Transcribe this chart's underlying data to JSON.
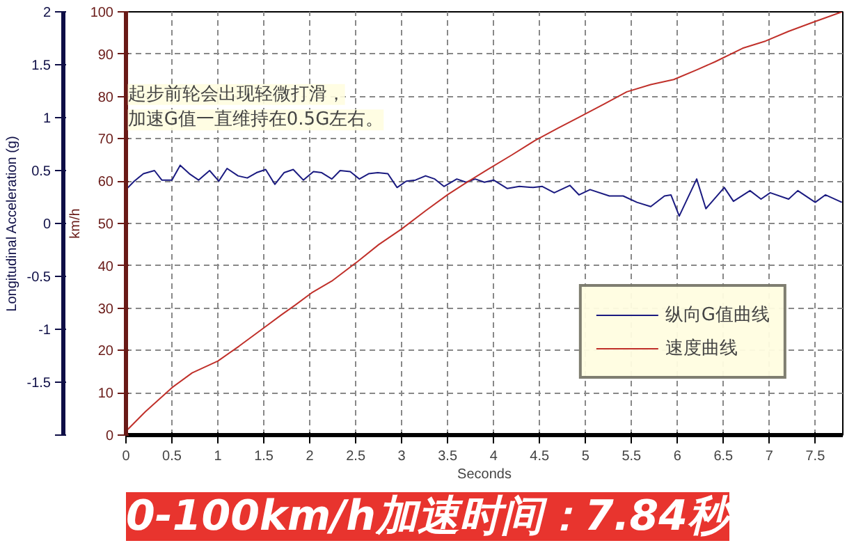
{
  "chart_data": {
    "type": "line",
    "title": "0-100km/h加速时间：7.84秒",
    "xlabel": "Seconds",
    "ylabel": "Longitudinal Acceleration (g)",
    "y2label": "km/h",
    "annotations": [
      "起步前轮会出现轻微打滑，",
      "加速G值一直维持在0.5G左右。"
    ],
    "xlim": [
      0,
      7.8
    ],
    "xticks": [
      0,
      0.5,
      1,
      1.5,
      2,
      2.5,
      3,
      3.5,
      4,
      4.5,
      5,
      5.5,
      6,
      6.5,
      7,
      7.5
    ],
    "ylim": [
      -2,
      2
    ],
    "yticks": [
      {
        "value": -2,
        "label": null
      },
      -1.5,
      -1,
      -0.5,
      0,
      0.5,
      1,
      1.5,
      2
    ],
    "y2lim": [
      0,
      100
    ],
    "y2ticks": [
      0,
      10,
      20,
      30,
      40,
      50,
      60,
      70,
      80,
      90,
      100
    ],
    "grid": true,
    "legend": "bottom right",
    "line_style": "solid",
    "marker": "none",
    "series": [
      {
        "name": "纵向G值曲线",
        "color": "#1a1a80",
        "axis": "y",
        "x": [
          0,
          0.09,
          0.19,
          0.31,
          0.39,
          0.5,
          0.59,
          0.69,
          0.79,
          0.91,
          1.01,
          1.1,
          1.22,
          1.32,
          1.42,
          1.52,
          1.62,
          1.72,
          1.82,
          1.93,
          2.04,
          2.13,
          2.24,
          2.33,
          2.44,
          2.54,
          2.64,
          2.74,
          2.85,
          2.95,
          3.05,
          3.15,
          3.26,
          3.36,
          3.46,
          3.6,
          3.7,
          3.8,
          3.9,
          4.0,
          4.15,
          4.28,
          4.43,
          4.53,
          4.66,
          4.83,
          4.93,
          5.05,
          5.26,
          5.41,
          5.56,
          5.71,
          5.86,
          5.93,
          6.02,
          6.21,
          6.31,
          6.51,
          6.61,
          6.79,
          6.91,
          7.01,
          7.21,
          7.31,
          7.5,
          7.61,
          7.79
        ],
        "values": [
          0.32,
          0.4,
          0.47,
          0.5,
          0.41,
          0.41,
          0.55,
          0.47,
          0.41,
          0.5,
          0.4,
          0.52,
          0.45,
          0.43,
          0.48,
          0.51,
          0.37,
          0.48,
          0.51,
          0.41,
          0.49,
          0.48,
          0.42,
          0.5,
          0.49,
          0.42,
          0.47,
          0.48,
          0.47,
          0.34,
          0.4,
          0.41,
          0.45,
          0.42,
          0.35,
          0.42,
          0.39,
          0.42,
          0.39,
          0.41,
          0.33,
          0.35,
          0.34,
          0.35,
          0.29,
          0.36,
          0.27,
          0.32,
          0.26,
          0.26,
          0.2,
          0.16,
          0.26,
          0.27,
          0.07,
          0.42,
          0.14,
          0.34,
          0.21,
          0.31,
          0.23,
          0.29,
          0.23,
          0.31,
          0.2,
          0.27,
          0.2
        ]
      },
      {
        "name": "速度曲线",
        "color": "#c0302a",
        "axis": "y2",
        "x": [
          0,
          0.21,
          0.5,
          0.72,
          1.0,
          1.23,
          1.51,
          1.69,
          1.84,
          2.02,
          2.24,
          2.52,
          2.75,
          3.0,
          3.26,
          3.5,
          3.7,
          3.94,
          4.2,
          4.45,
          4.7,
          4.93,
          5.2,
          5.45,
          5.71,
          5.96,
          6.21,
          6.41,
          6.71,
          6.96,
          7.21,
          7.46,
          7.79
        ],
        "values": [
          0.9,
          5.5,
          11.2,
          14.7,
          17.5,
          21,
          25.5,
          28.4,
          30.7,
          33.6,
          36.4,
          41,
          45,
          48.7,
          53,
          56.8,
          59.6,
          62.8,
          66.2,
          69.6,
          72.5,
          75.1,
          78.2,
          81.1,
          82.8,
          84,
          86.3,
          88.2,
          91.4,
          93.1,
          95.4,
          97.4,
          100
        ]
      }
    ]
  }
}
